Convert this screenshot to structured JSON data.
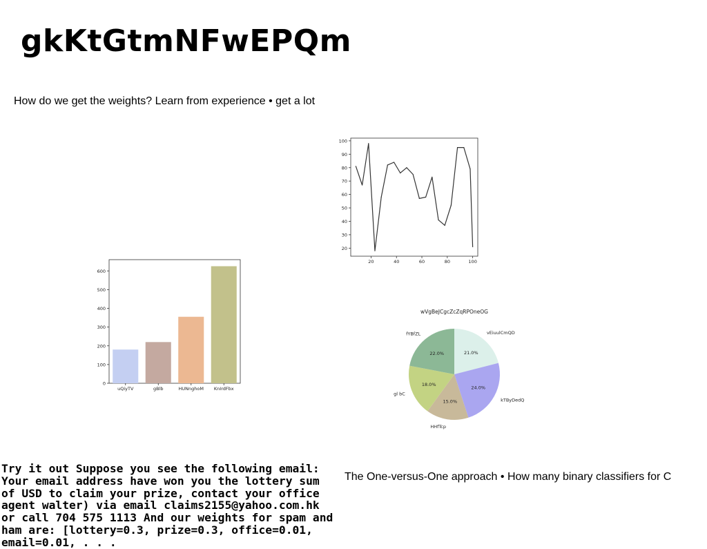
{
  "page": {
    "title": "gkKtGtmNFwEPQm",
    "subtitle": "How do we get the weights? Learn from experience • get a lot",
    "body_text": "Try it out Suppose you see the following email: Your email address have won you the lottery sum of USD to claim your prize, contact your office agent walter) via email claims2155@yahoo.com.hk or call 704 575 1113 And our weights for spam and ham are: [lottery=0.3, prize=0.3, office=0.01, email=0.01, . . .",
    "side_text": "The One-versus-One approach • How many binary classifiers for C"
  },
  "chart_data": [
    {
      "type": "line",
      "x": [
        8,
        13,
        18,
        23,
        28,
        33,
        38,
        43,
        48,
        53,
        58,
        63,
        68,
        73,
        78,
        83,
        88,
        93,
        98,
        100
      ],
      "y": [
        81,
        67,
        98,
        18,
        58,
        82,
        84,
        76,
        80,
        75,
        57,
        58,
        73,
        41,
        37,
        52,
        95,
        95,
        79,
        21
      ],
      "xlim": [
        4,
        104
      ],
      "ylim": [
        14,
        102
      ],
      "xticks": [
        20,
        40,
        60,
        80,
        100
      ],
      "yticks": [
        20,
        30,
        40,
        50,
        60,
        70,
        80,
        90,
        100
      ],
      "color": "#333333",
      "grid": false
    },
    {
      "type": "bar",
      "categories": [
        "uQiyTV",
        "gBlb",
        "HUNnghoM",
        "KnIrdFbx"
      ],
      "values": [
        180,
        220,
        355,
        625
      ],
      "ylim": [
        0,
        660
      ],
      "yticks": [
        0,
        100,
        200,
        300,
        400,
        500,
        600
      ],
      "colors": [
        "#c4cff2",
        "#c4a9a0",
        "#ecb892",
        "#c2c18b"
      ],
      "grid": false
    },
    {
      "type": "pie",
      "title": "wVgBeJCgcZcZqRPOneOG",
      "labels": [
        "vEiuulCmQD",
        "kTByDedQ",
        "HHfTcp",
        "gl bC",
        "fYBfZL"
      ],
      "values": [
        21.0,
        24.0,
        15.0,
        18.0,
        22.0
      ],
      "colors": [
        "#dcf0ea",
        "#aaa6f0",
        "#c8b99a",
        "#c3d383",
        "#8cb896"
      ]
    }
  ]
}
